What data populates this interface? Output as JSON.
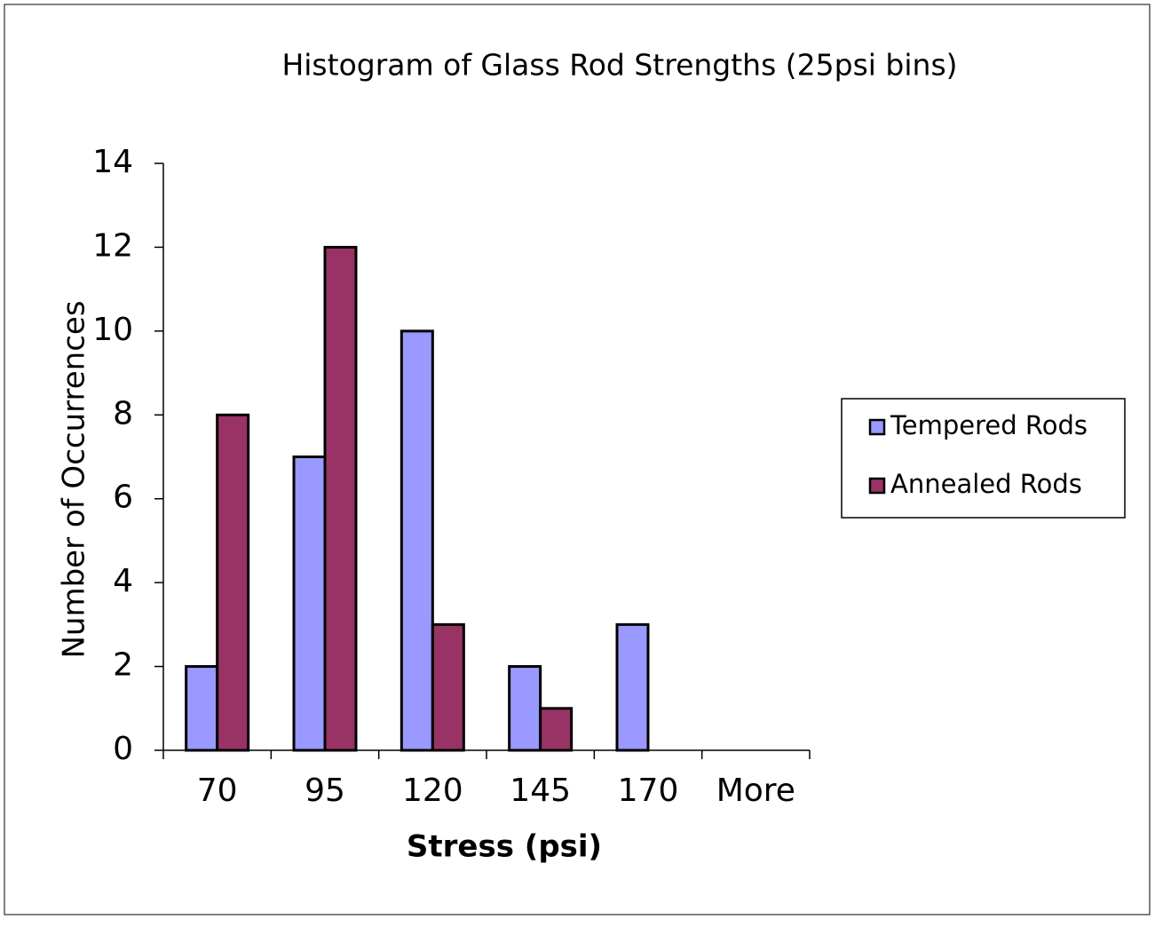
{
  "chart_data": {
    "type": "bar",
    "title": "Histogram of Glass Rod Strengths (25psi bins)",
    "x_label": "Stress (psi)",
    "y_label": "Number of Occurrences",
    "categories": [
      "70",
      "95",
      "120",
      "145",
      "170",
      "More"
    ],
    "series": [
      {
        "name": "Tempered Rods",
        "color": "#9999ff",
        "values": [
          2,
          7,
          10,
          2,
          3,
          0
        ]
      },
      {
        "name": "Annealed Rods",
        "color": "#993366",
        "values": [
          8,
          12,
          3,
          1,
          0,
          0
        ]
      }
    ],
    "ylim": [
      0,
      14
    ],
    "yticks": [
      0,
      2,
      4,
      6,
      8,
      10,
      12,
      14
    ],
    "grid": false,
    "legend": "right"
  }
}
